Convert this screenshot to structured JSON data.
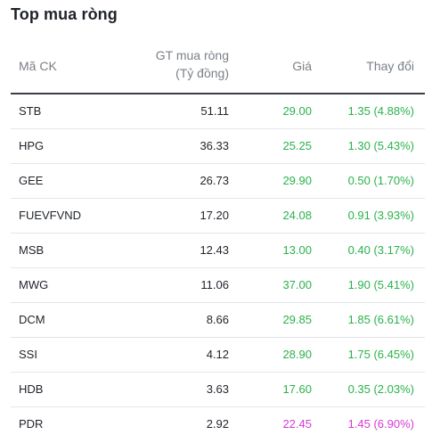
{
  "title": "Top mua ròng",
  "columns": {
    "symbol": "Mã CK",
    "value_line1": "GT mua ròng",
    "value_line2": "(Tỷ đồng)",
    "price": "Giá",
    "change": "Thay đổi"
  },
  "colors": {
    "up": "#2bb24c",
    "ceiling": "#d63ad8"
  },
  "rows": [
    {
      "symbol": "STB",
      "value": "51.11",
      "price": "29.00",
      "change": "1.35 (4.88%)",
      "status": "up"
    },
    {
      "symbol": "HPG",
      "value": "36.33",
      "price": "25.25",
      "change": "1.30 (5.43%)",
      "status": "up"
    },
    {
      "symbol": "GEE",
      "value": "26.73",
      "price": "29.90",
      "change": "0.50 (1.70%)",
      "status": "up"
    },
    {
      "symbol": "FUEVFVND",
      "value": "17.20",
      "price": "24.08",
      "change": "0.91 (3.93%)",
      "status": "up"
    },
    {
      "symbol": "MSB",
      "value": "12.43",
      "price": "13.00",
      "change": "0.40 (3.17%)",
      "status": "up"
    },
    {
      "symbol": "MWG",
      "value": "11.06",
      "price": "37.00",
      "change": "1.90 (5.41%)",
      "status": "up"
    },
    {
      "symbol": "DCM",
      "value": "8.66",
      "price": "29.85",
      "change": "1.85 (6.61%)",
      "status": "up"
    },
    {
      "symbol": "SSI",
      "value": "4.12",
      "price": "28.90",
      "change": "1.75 (6.45%)",
      "status": "up"
    },
    {
      "symbol": "HDB",
      "value": "3.63",
      "price": "17.60",
      "change": "0.35 (2.03%)",
      "status": "up"
    },
    {
      "symbol": "PDR",
      "value": "2.92",
      "price": "22.45",
      "change": "1.45 (6.90%)",
      "status": "ceil"
    }
  ]
}
